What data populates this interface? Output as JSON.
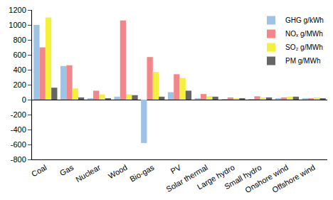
{
  "chart_data": {
    "type": "bar",
    "categories": [
      "Coal",
      "Gas",
      "Nuclear",
      "Wood",
      "Bio-gas",
      "PV",
      "Solar thermal",
      "Large hydro",
      "Small hydro",
      "Onshore wind",
      "Offshore wind"
    ],
    "series": [
      {
        "name": "GHG g/kWh",
        "color": "#9dc3e6",
        "values": [
          1000,
          450,
          10,
          40,
          -580,
          100,
          20,
          5,
          5,
          10,
          10
        ]
      },
      {
        "name": "NOₓ g/MWh",
        "color": "#f4868a",
        "values": [
          700,
          460,
          120,
          1060,
          570,
          340,
          75,
          30,
          45,
          30,
          20
        ]
      },
      {
        "name": "SO₂ g/MWh",
        "color": "#f5f03a",
        "values": [
          1100,
          150,
          70,
          70,
          370,
          290,
          45,
          20,
          30,
          40,
          30
        ]
      },
      {
        "name": "PM g/MWh",
        "color": "#666666",
        "values": [
          160,
          30,
          10,
          60,
          40,
          120,
          40,
          20,
          30,
          40,
          10
        ]
      }
    ],
    "ylim": [
      -800,
      1200
    ],
    "yticks": [
      -800,
      -600,
      -400,
      -200,
      0,
      200,
      400,
      600,
      800,
      1000,
      1200
    ],
    "grid": false,
    "legend": "top right"
  }
}
